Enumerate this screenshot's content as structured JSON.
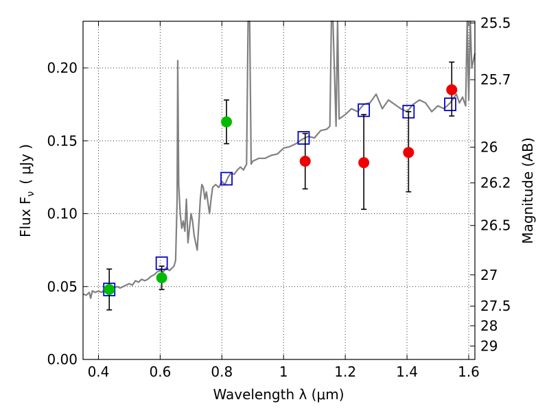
{
  "chart_data": {
    "type": "scatter",
    "xlabel": "Wavelength  λ (μm)",
    "ylabel": "Flux  F",
    "ylabel_sub": "ν",
    "ylabel_units": "( μJy )",
    "y2label": "Magnitude (AB)",
    "xlim": [
      0.35,
      1.62
    ],
    "ylim": [
      0.0,
      0.232
    ],
    "grid": true,
    "x_ticks": [
      0.4,
      0.6,
      0.8,
      1.0,
      1.2,
      1.4,
      1.6
    ],
    "x_tick_labels": [
      "0.4",
      "0.6",
      "0.8",
      "1",
      "1.2",
      "1.4",
      "1.6"
    ],
    "y_ticks": [
      0.0,
      0.05,
      0.1,
      0.15,
      0.2
    ],
    "y_tick_labels": [
      "0.00",
      "0.05",
      "0.10",
      "0.15",
      "0.20"
    ],
    "y2_ticks": [
      {
        "label": "25.5",
        "flux": 0.2308
      },
      {
        "label": "25.7",
        "flux": 0.1919
      },
      {
        "label": "26",
        "flux": 0.1456
      },
      {
        "label": "26.2",
        "flux": 0.1211
      },
      {
        "label": "26.5",
        "flux": 0.0919
      },
      {
        "label": "27",
        "flux": 0.058
      },
      {
        "label": "27.5",
        "flux": 0.0366
      },
      {
        "label": "28",
        "flux": 0.0231
      },
      {
        "label": "29",
        "flux": 0.0092
      }
    ],
    "series": [
      {
        "kind": "line",
        "color": "#808080",
        "x": [
          0.35,
          0.36,
          0.37,
          0.375,
          0.38,
          0.39,
          0.4,
          0.41,
          0.42,
          0.43,
          0.44,
          0.45,
          0.46,
          0.47,
          0.48,
          0.49,
          0.5,
          0.51,
          0.52,
          0.53,
          0.54,
          0.55,
          0.56,
          0.57,
          0.58,
          0.59,
          0.6,
          0.61,
          0.62,
          0.63,
          0.64,
          0.645,
          0.65,
          0.655,
          0.657,
          0.66,
          0.665,
          0.67,
          0.675,
          0.68,
          0.685,
          0.69,
          0.695,
          0.7,
          0.705,
          0.71,
          0.72,
          0.73,
          0.735,
          0.74,
          0.745,
          0.75,
          0.76,
          0.765,
          0.77,
          0.78,
          0.79,
          0.8,
          0.81,
          0.82,
          0.83,
          0.84,
          0.85,
          0.86,
          0.87,
          0.88,
          0.885,
          0.89,
          0.895,
          0.9,
          0.92,
          0.94,
          0.96,
          0.98,
          1.0,
          1.02,
          1.04,
          1.06,
          1.08,
          1.1,
          1.12,
          1.14,
          1.15,
          1.155,
          1.16,
          1.17,
          1.175,
          1.18,
          1.2,
          1.22,
          1.24,
          1.26,
          1.28,
          1.3,
          1.32,
          1.34,
          1.36,
          1.38,
          1.4,
          1.42,
          1.44,
          1.46,
          1.48,
          1.5,
          1.52,
          1.54,
          1.56,
          1.57,
          1.58,
          1.59,
          1.595,
          1.6,
          1.605,
          1.61,
          1.62
        ],
        "y": [
          0.045,
          0.044,
          0.046,
          0.042,
          0.047,
          0.046,
          0.047,
          0.046,
          0.048,
          0.047,
          0.048,
          0.049,
          0.05,
          0.049,
          0.05,
          0.051,
          0.052,
          0.051,
          0.054,
          0.053,
          0.055,
          0.054,
          0.055,
          0.057,
          0.058,
          0.06,
          0.061,
          0.06,
          0.063,
          0.061,
          0.063,
          0.064,
          0.068,
          0.11,
          0.205,
          0.12,
          0.1,
          0.09,
          0.095,
          0.088,
          0.11,
          0.08,
          0.09,
          0.1,
          0.095,
          0.085,
          0.075,
          0.11,
          0.12,
          0.118,
          0.11,
          0.115,
          0.1,
          0.11,
          0.118,
          0.12,
          0.118,
          0.122,
          0.12,
          0.125,
          0.128,
          0.127,
          0.13,
          0.132,
          0.13,
          0.134,
          0.232,
          0.232,
          0.134,
          0.136,
          0.138,
          0.138,
          0.14,
          0.141,
          0.145,
          0.146,
          0.148,
          0.151,
          0.153,
          0.152,
          0.157,
          0.158,
          0.16,
          0.232,
          0.232,
          0.16,
          0.232,
          0.165,
          0.168,
          0.172,
          0.17,
          0.175,
          0.176,
          0.182,
          0.172,
          0.178,
          0.175,
          0.172,
          0.17,
          0.175,
          0.178,
          0.176,
          0.17,
          0.174,
          0.172,
          0.176,
          0.182,
          0.176,
          0.18,
          0.174,
          0.232,
          0.178,
          0.232,
          0.2,
          0.21
        ]
      },
      {
        "kind": "points",
        "color": "#00bb00",
        "x": [
          0.435,
          0.605,
          0.815
        ],
        "y": [
          0.048,
          0.056,
          0.163
        ],
        "yerr_low": [
          0.034,
          0.048,
          0.148
        ],
        "yerr_high": [
          0.062,
          0.064,
          0.178
        ]
      },
      {
        "kind": "points",
        "color": "#ee0000",
        "x": [
          1.07,
          1.26,
          1.405,
          1.545
        ],
        "y": [
          0.136,
          0.135,
          0.142,
          0.185
        ],
        "yerr_low": [
          0.117,
          0.103,
          0.115,
          0.167
        ],
        "yerr_high": [
          0.155,
          0.168,
          0.17,
          0.204
        ]
      },
      {
        "kind": "boxes",
        "color": "#0000cc",
        "x": [
          0.435,
          0.605,
          0.815,
          1.065,
          1.26,
          1.405,
          1.54
        ],
        "y": [
          0.048,
          0.066,
          0.124,
          0.152,
          0.171,
          0.17,
          0.175
        ]
      }
    ]
  }
}
